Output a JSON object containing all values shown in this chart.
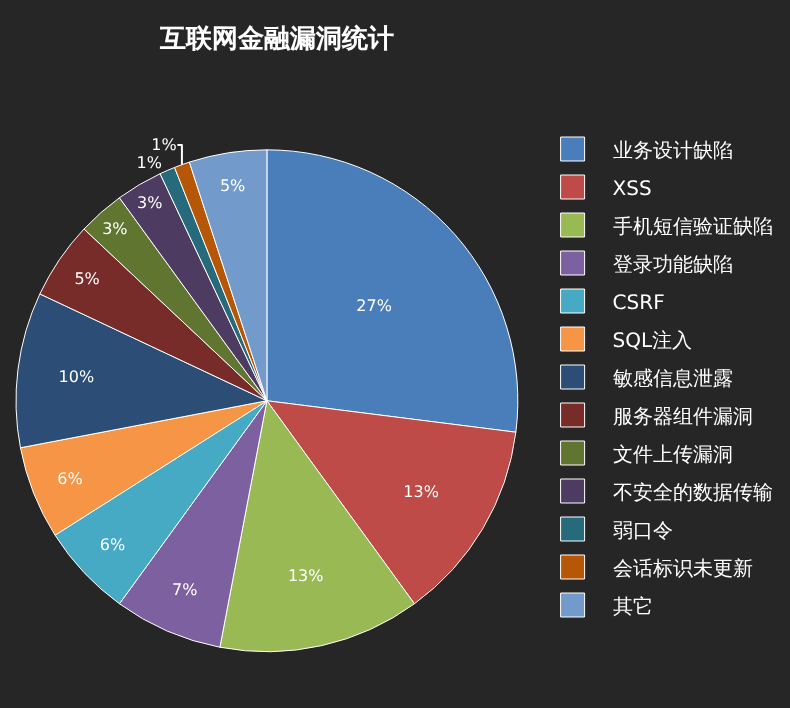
{
  "chart_data": {
    "type": "pie",
    "title": "互联网金融漏洞统计",
    "categories": [
      "业务设计缺陷",
      "XSS",
      "手机短信验证缺陷",
      "登录功能缺陷",
      "CSRF",
      "SQL注入",
      "敏感信息泄露",
      "服务器组件漏洞",
      "文件上传漏洞",
      "不安全的数据传输",
      "弱口令",
      "会话标识未更新",
      "其它"
    ],
    "values": [
      27,
      13,
      13,
      7,
      6,
      6,
      10,
      5,
      3,
      3,
      1,
      1,
      5
    ],
    "colors": [
      "#4a7ebb",
      "#be4b48",
      "#98b954",
      "#7d60a0",
      "#46aac5",
      "#f69545",
      "#2c4d75",
      "#772c2a",
      "#5f7530",
      "#4d3b62",
      "#276a7c",
      "#b65708",
      "#729aca"
    ],
    "value_labels": [
      "27%",
      "13%",
      "13%",
      "7%",
      "6%",
      "6%",
      "10%",
      "5%",
      "3%",
      "3%",
      "1%",
      "1%",
      "5%"
    ],
    "legend": "right"
  }
}
